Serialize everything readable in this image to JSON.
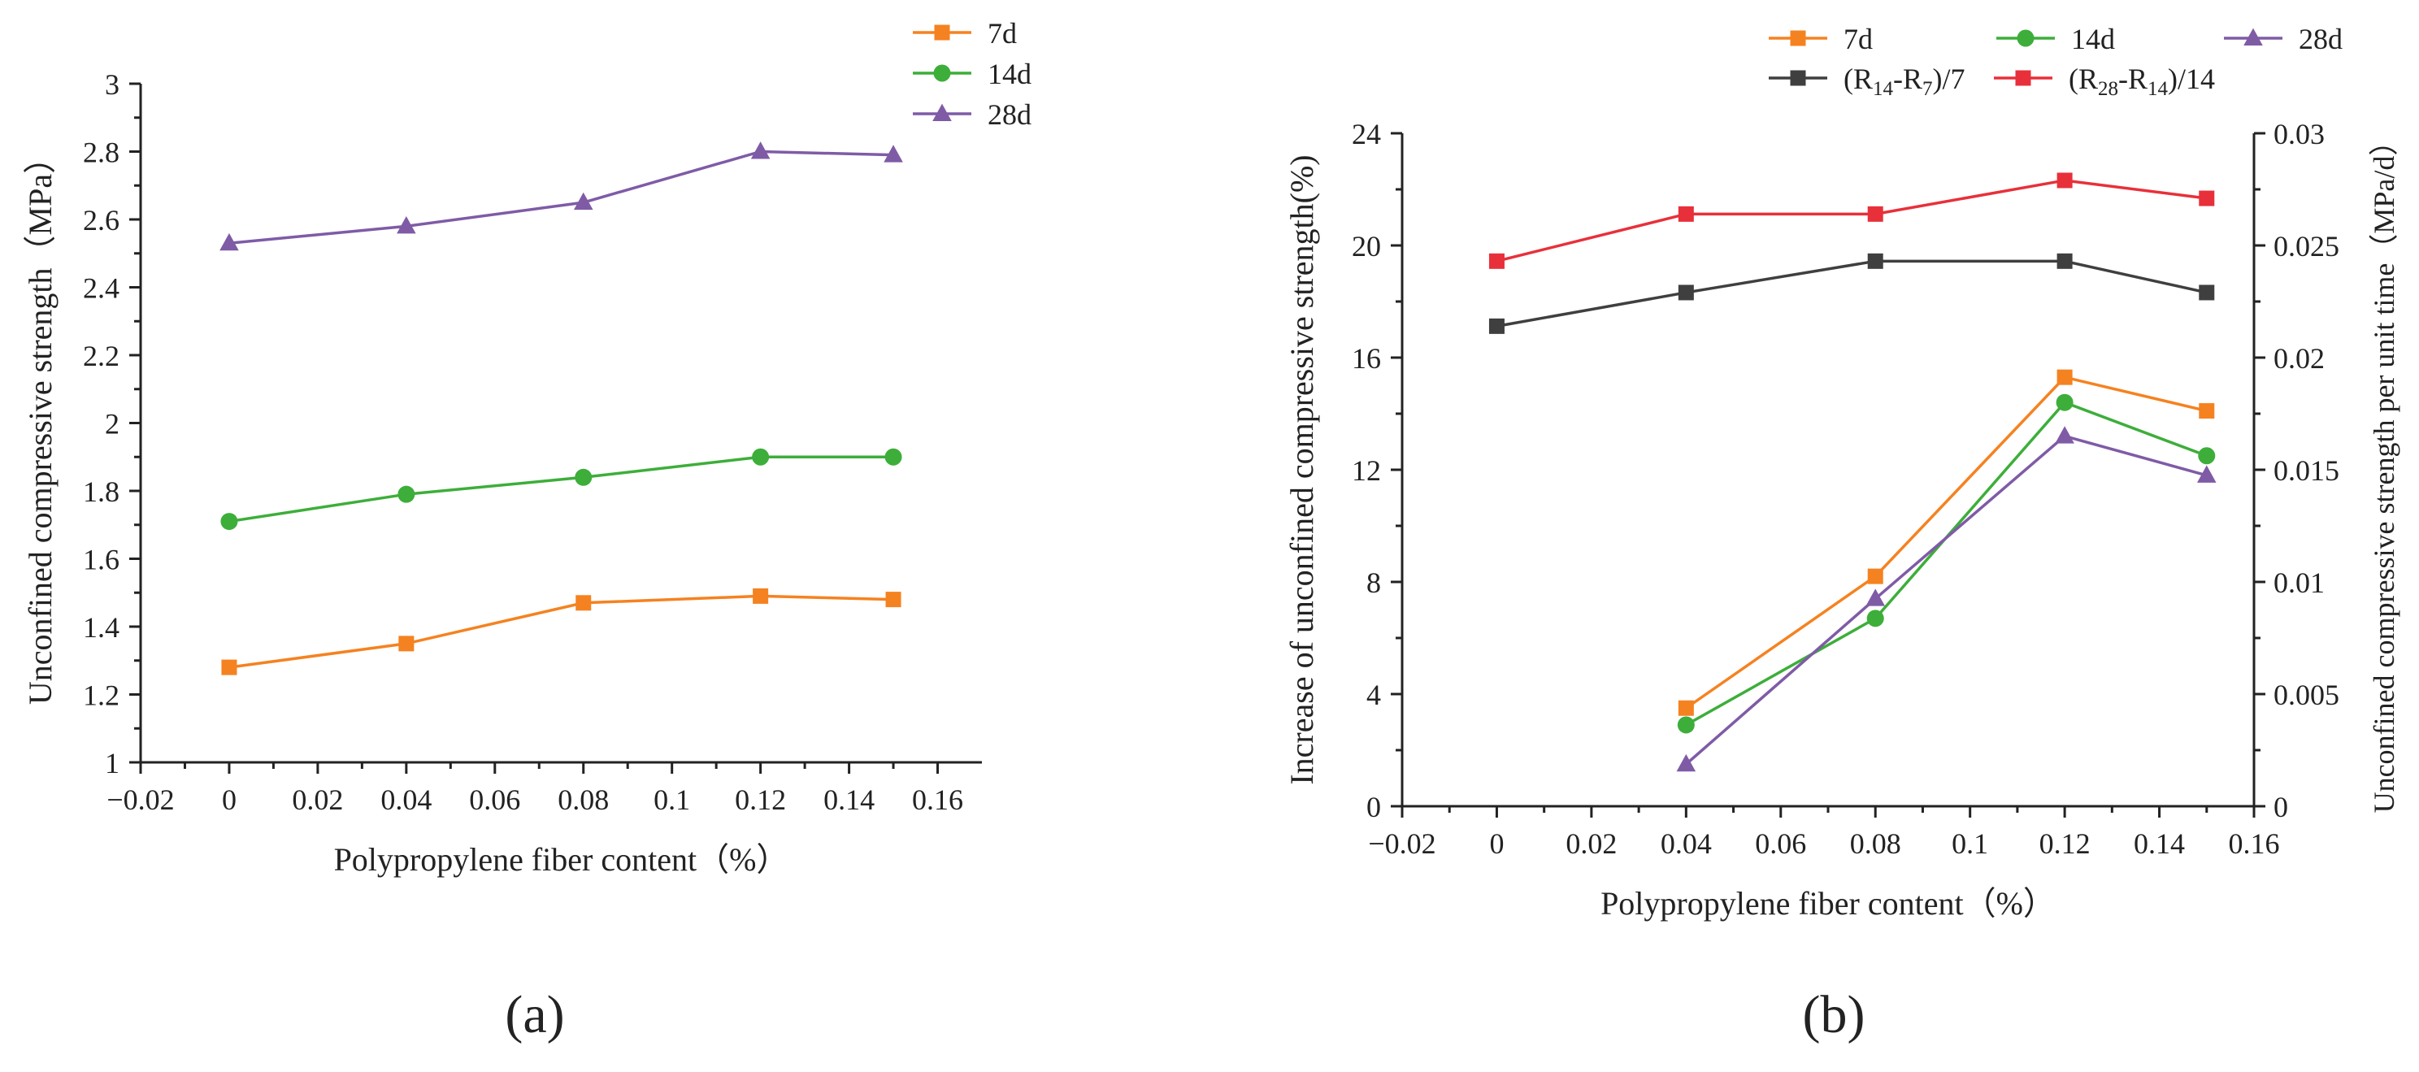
{
  "chart_data": [
    {
      "type": "line",
      "panel_label": "(a)",
      "title": "",
      "xlabel": "Polypropylene fiber content（%）",
      "ylabel": "Unconfined compressive strength（MPa）",
      "xlim": [
        -0.02,
        0.17
      ],
      "ylim": [
        1,
        3
      ],
      "xticks": [
        -0.02,
        0,
        0.02,
        0.04,
        0.06,
        0.08,
        0.1,
        0.12,
        0.14,
        0.16
      ],
      "xtick_labels": [
        "−0.02",
        "0",
        "0.02",
        "0.04",
        "0.06",
        "0.08",
        "0.1",
        "0.12",
        "0.14",
        "0.16"
      ],
      "yticks": [
        1,
        1.2,
        1.4,
        1.6,
        1.8,
        2,
        2.2,
        2.4,
        2.6,
        2.8,
        3
      ],
      "ytick_labels": [
        "1",
        "1.2",
        "1.4",
        "1.6",
        "1.8",
        "2",
        "2.2",
        "2.4",
        "2.6",
        "2.8",
        "3"
      ],
      "grid": false,
      "legend_position": "top-right",
      "series": [
        {
          "name": "7d",
          "color": "#F58220",
          "marker": "square",
          "x": [
            0,
            0.04,
            0.08,
            0.12,
            0.15
          ],
          "y": [
            1.28,
            1.35,
            1.47,
            1.49,
            1.48
          ]
        },
        {
          "name": "14d",
          "color": "#3DAE3A",
          "marker": "circle",
          "x": [
            0,
            0.04,
            0.08,
            0.12,
            0.15
          ],
          "y": [
            1.71,
            1.79,
            1.84,
            1.9,
            1.9
          ]
        },
        {
          "name": "28d",
          "color": "#7F5BA6",
          "marker": "triangle",
          "x": [
            0,
            0.04,
            0.08,
            0.12,
            0.15
          ],
          "y": [
            2.53,
            2.58,
            2.65,
            2.8,
            2.79
          ]
        }
      ]
    },
    {
      "type": "line",
      "panel_label": "(b)",
      "title": "",
      "xlabel": "Polypropylene fiber content（%）",
      "ylabel": "Increase of unconfined compressive strength(%)",
      "y2label": "Unconfined compressive strength per unit time（MPa/d）",
      "xlim": [
        -0.02,
        0.16
      ],
      "ylim": [
        0,
        24
      ],
      "y2lim": [
        0,
        0.03
      ],
      "xticks": [
        -0.02,
        0,
        0.02,
        0.04,
        0.06,
        0.08,
        0.1,
        0.12,
        0.14,
        0.16
      ],
      "xtick_labels": [
        "−0.02",
        "0",
        "0.02",
        "0.04",
        "0.06",
        "0.08",
        "0.1",
        "0.12",
        "0.14",
        "0.16"
      ],
      "yticks": [
        0,
        4,
        8,
        12,
        16,
        20,
        24
      ],
      "ytick_labels": [
        "0",
        "4",
        "8",
        "12",
        "16",
        "20",
        "24"
      ],
      "y2ticks": [
        0,
        0.005,
        0.01,
        0.015,
        0.02,
        0.025,
        0.03
      ],
      "y2tick_labels": [
        "0",
        "0.005",
        "0.01",
        "0.015",
        "0.02",
        "0.025",
        "0.03"
      ],
      "grid": false,
      "legend_position": "top",
      "series": [
        {
          "name": "7d",
          "color": "#F58220",
          "marker": "square",
          "axis": "left",
          "x": [
            0.04,
            0.08,
            0.12,
            0.15
          ],
          "y": [
            3.5,
            8.2,
            15.3,
            14.1
          ]
        },
        {
          "name": "14d",
          "color": "#3DAE3A",
          "marker": "circle",
          "axis": "left",
          "x": [
            0.04,
            0.08,
            0.12,
            0.15
          ],
          "y": [
            2.9,
            6.7,
            14.4,
            12.5
          ]
        },
        {
          "name": "28d",
          "color": "#7F5BA6",
          "marker": "triangle",
          "axis": "left",
          "x": [
            0.04,
            0.08,
            0.12,
            0.15
          ],
          "y": [
            1.5,
            7.4,
            13.2,
            11.8
          ]
        },
        {
          "name": "(R14-R7)/7",
          "legend_parts": [
            [
              "(R",
              ""
            ],
            [
              "14",
              "sub"
            ],
            [
              "-R",
              ""
            ],
            [
              "7",
              "sub"
            ],
            [
              ")/7",
              ""
            ]
          ],
          "color": "#3F3F3F",
          "marker": "square",
          "axis": "right",
          "x": [
            0,
            0.04,
            0.08,
            0.12,
            0.15
          ],
          "y": [
            0.0214,
            0.0229,
            0.0243,
            0.0243,
            0.0229
          ]
        },
        {
          "name": "(R28-R14)/14",
          "legend_parts": [
            [
              "(R",
              ""
            ],
            [
              "28",
              "sub"
            ],
            [
              "-R",
              ""
            ],
            [
              "14",
              "sub"
            ],
            [
              ")/14",
              ""
            ]
          ],
          "color": "#E8303A",
          "marker": "square",
          "axis": "right",
          "x": [
            0,
            0.04,
            0.08,
            0.12,
            0.15
          ],
          "y": [
            0.0243,
            0.0264,
            0.0264,
            0.0279,
            0.0271
          ]
        }
      ]
    }
  ]
}
